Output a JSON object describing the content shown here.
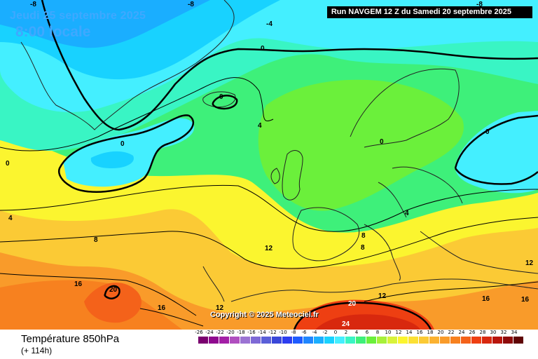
{
  "header": {
    "date": "Jeudi 25 septembre 2025",
    "time": "8:00 locale",
    "run": "Run NAVGEM 12 Z du Samedi 20 septembre 2025"
  },
  "footer": {
    "variable": "Température 850hPa",
    "lead": "(+ 114h)",
    "copyright": "Copyright © 2025 Meteociel.fr"
  },
  "legend": {
    "ticks": [
      "-26",
      "-24",
      "-22",
      "-20",
      "-18",
      "-16",
      "-14",
      "-12",
      "-10",
      "-8",
      "-6",
      "-4",
      "-2",
      "0",
      "2",
      "4",
      "6",
      "8",
      "10",
      "12",
      "14",
      "16",
      "18",
      "20",
      "22",
      "24",
      "26",
      "28",
      "30",
      "32",
      "34"
    ],
    "colors": [
      "#7a006f",
      "#8f0a8f",
      "#a31fa6",
      "#b04fbf",
      "#9b73d3",
      "#7e69d6",
      "#5a5fd8",
      "#3a47d9",
      "#2c3df0",
      "#1e5bff",
      "#1f86ff",
      "#1aaeff",
      "#18d2ff",
      "#44efff",
      "#39f5c4",
      "#3ef07a",
      "#6bf03b",
      "#a7f13a",
      "#d8f33a",
      "#fbf52f",
      "#fbe034",
      "#fbca35",
      "#fbb231",
      "#f99b2a",
      "#f7811f",
      "#f4621a",
      "#ee3f12",
      "#d8280e",
      "#b8150c",
      "#8e0a0a",
      "#5f0505"
    ]
  },
  "contour_labels": [
    {
      "text": "-8",
      "color": "#000"
    },
    {
      "text": "-8",
      "color": "#000"
    },
    {
      "text": "-4",
      "color": "#000"
    },
    {
      "text": "-8",
      "color": "#000"
    },
    {
      "text": "0",
      "color": "#000"
    },
    {
      "text": "0",
      "color": "#000"
    },
    {
      "text": "0",
      "color": "#000"
    },
    {
      "text": "0",
      "color": "#000"
    },
    {
      "text": "4",
      "color": "#000"
    },
    {
      "text": "0",
      "color": "#000"
    },
    {
      "text": "0",
      "color": "#000"
    },
    {
      "text": "4",
      "color": "#000"
    },
    {
      "text": "4",
      "color": "#000"
    },
    {
      "text": "8",
      "color": "#000"
    },
    {
      "text": "8",
      "color": "#000"
    },
    {
      "text": "8",
      "color": "#000"
    },
    {
      "text": "12",
      "color": "#000"
    },
    {
      "text": "12",
      "color": "#000"
    },
    {
      "text": "12",
      "color": "#000"
    },
    {
      "text": "16",
      "color": "#000"
    },
    {
      "text": "20",
      "color": "#000"
    },
    {
      "text": "16",
      "color": "#000"
    },
    {
      "text": "12",
      "color": "#000"
    },
    {
      "text": "20",
      "color": "#fff"
    },
    {
      "text": "16",
      "color": "#000"
    },
    {
      "text": "16",
      "color": "#000"
    },
    {
      "text": "24",
      "color": "#fff"
    }
  ]
}
